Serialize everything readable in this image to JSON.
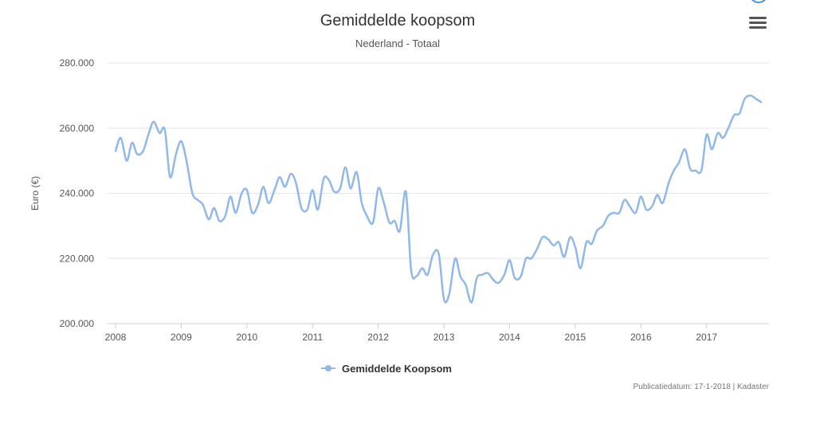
{
  "page": {
    "menu_icon": "hamburger-menu-icon",
    "credits": "Publicatiedatum: 17-1-2018 | Kadaster"
  },
  "chart_data": {
    "type": "line",
    "title": "Gemiddelde koopsom",
    "subtitle": "Nederland - Totaal",
    "xlabel": "",
    "ylabel": "Euro (€)",
    "xlim": [
      2008,
      2017.95
    ],
    "ylim": [
      200000,
      280000
    ],
    "y_ticks": [
      {
        "value": 200000,
        "label": "200.000"
      },
      {
        "value": 220000,
        "label": "220.000"
      },
      {
        "value": 240000,
        "label": "240.000"
      },
      {
        "value": 260000,
        "label": "260.000"
      },
      {
        "value": 280000,
        "label": "280.000"
      }
    ],
    "x_ticks": [
      {
        "value": 2008,
        "label": "2008"
      },
      {
        "value": 2009,
        "label": "2009"
      },
      {
        "value": 2010,
        "label": "2010"
      },
      {
        "value": 2011,
        "label": "2011"
      },
      {
        "value": 2012,
        "label": "2012"
      },
      {
        "value": 2013,
        "label": "2013"
      },
      {
        "value": 2014,
        "label": "2014"
      },
      {
        "value": 2015,
        "label": "2015"
      },
      {
        "value": 2016,
        "label": "2016"
      },
      {
        "value": 2017,
        "label": "2017"
      }
    ],
    "grid": "horizontal",
    "legend_position": "bottom-center",
    "series": [
      {
        "name": "Gemiddelde Koopsom",
        "color": "#90b8e8",
        "points": [
          [
            2008.0,
            253000
          ],
          [
            2008.08,
            257000
          ],
          [
            2008.17,
            250000
          ],
          [
            2008.25,
            255500
          ],
          [
            2008.33,
            252000
          ],
          [
            2008.42,
            253000
          ],
          [
            2008.5,
            258000
          ],
          [
            2008.58,
            262000
          ],
          [
            2008.67,
            258500
          ],
          [
            2008.75,
            259500
          ],
          [
            2008.83,
            245000
          ],
          [
            2008.92,
            252000
          ],
          [
            2009.0,
            256000
          ],
          [
            2009.08,
            250000
          ],
          [
            2009.17,
            240000
          ],
          [
            2009.25,
            238000
          ],
          [
            2009.33,
            236500
          ],
          [
            2009.42,
            232000
          ],
          [
            2009.5,
            235500
          ],
          [
            2009.58,
            231500
          ],
          [
            2009.67,
            233000
          ],
          [
            2009.75,
            239000
          ],
          [
            2009.83,
            234000
          ],
          [
            2009.92,
            240000
          ],
          [
            2010.0,
            241000
          ],
          [
            2010.08,
            234000
          ],
          [
            2010.17,
            236500
          ],
          [
            2010.25,
            242000
          ],
          [
            2010.33,
            237000
          ],
          [
            2010.42,
            241000
          ],
          [
            2010.5,
            245000
          ],
          [
            2010.58,
            242000
          ],
          [
            2010.67,
            246000
          ],
          [
            2010.75,
            243000
          ],
          [
            2010.83,
            235500
          ],
          [
            2010.92,
            235000
          ],
          [
            2011.0,
            241000
          ],
          [
            2011.08,
            235000
          ],
          [
            2011.17,
            244500
          ],
          [
            2011.25,
            244000
          ],
          [
            2011.33,
            240500
          ],
          [
            2011.42,
            241500
          ],
          [
            2011.5,
            248000
          ],
          [
            2011.58,
            241500
          ],
          [
            2011.67,
            246500
          ],
          [
            2011.75,
            237000
          ],
          [
            2011.83,
            233000
          ],
          [
            2011.92,
            231000
          ],
          [
            2012.0,
            241500
          ],
          [
            2012.08,
            237500
          ],
          [
            2012.17,
            231000
          ],
          [
            2012.25,
            231500
          ],
          [
            2012.33,
            228500
          ],
          [
            2012.42,
            240500
          ],
          [
            2012.5,
            216500
          ],
          [
            2012.58,
            214500
          ],
          [
            2012.67,
            217000
          ],
          [
            2012.75,
            215000
          ],
          [
            2012.83,
            221000
          ],
          [
            2012.92,
            221500
          ],
          [
            2013.0,
            207500
          ],
          [
            2013.08,
            209000
          ],
          [
            2013.17,
            220000
          ],
          [
            2013.25,
            214500
          ],
          [
            2013.33,
            212000
          ],
          [
            2013.42,
            206500
          ],
          [
            2013.5,
            214000
          ],
          [
            2013.58,
            215000
          ],
          [
            2013.67,
            215500
          ],
          [
            2013.75,
            213500
          ],
          [
            2013.83,
            212500
          ],
          [
            2013.92,
            215000
          ],
          [
            2014.0,
            219500
          ],
          [
            2014.08,
            214000
          ],
          [
            2014.17,
            214500
          ],
          [
            2014.25,
            220000
          ],
          [
            2014.33,
            220000
          ],
          [
            2014.42,
            223000
          ],
          [
            2014.5,
            226500
          ],
          [
            2014.58,
            226000
          ],
          [
            2014.67,
            224000
          ],
          [
            2014.75,
            225000
          ],
          [
            2014.83,
            220500
          ],
          [
            2014.92,
            226500
          ],
          [
            2015.0,
            223500
          ],
          [
            2015.08,
            217000
          ],
          [
            2015.17,
            225000
          ],
          [
            2015.25,
            224500
          ],
          [
            2015.33,
            228500
          ],
          [
            2015.42,
            230000
          ],
          [
            2015.5,
            233000
          ],
          [
            2015.58,
            234000
          ],
          [
            2015.67,
            234000
          ],
          [
            2015.75,
            238000
          ],
          [
            2015.83,
            236000
          ],
          [
            2015.92,
            234000
          ],
          [
            2016.0,
            239000
          ],
          [
            2016.08,
            235000
          ],
          [
            2016.17,
            236000
          ],
          [
            2016.25,
            239500
          ],
          [
            2016.33,
            237000
          ],
          [
            2016.42,
            243000
          ],
          [
            2016.5,
            247000
          ],
          [
            2016.58,
            249500
          ],
          [
            2016.67,
            253500
          ],
          [
            2016.75,
            247500
          ],
          [
            2016.83,
            247000
          ],
          [
            2016.92,
            247000
          ],
          [
            2017.0,
            258000
          ],
          [
            2017.08,
            253500
          ],
          [
            2017.17,
            258500
          ],
          [
            2017.25,
            257000
          ],
          [
            2017.33,
            260000
          ],
          [
            2017.42,
            264000
          ],
          [
            2017.5,
            264500
          ],
          [
            2017.58,
            269000
          ],
          [
            2017.67,
            270000
          ],
          [
            2017.75,
            269000
          ],
          [
            2017.83,
            268000
          ]
        ]
      }
    ]
  }
}
